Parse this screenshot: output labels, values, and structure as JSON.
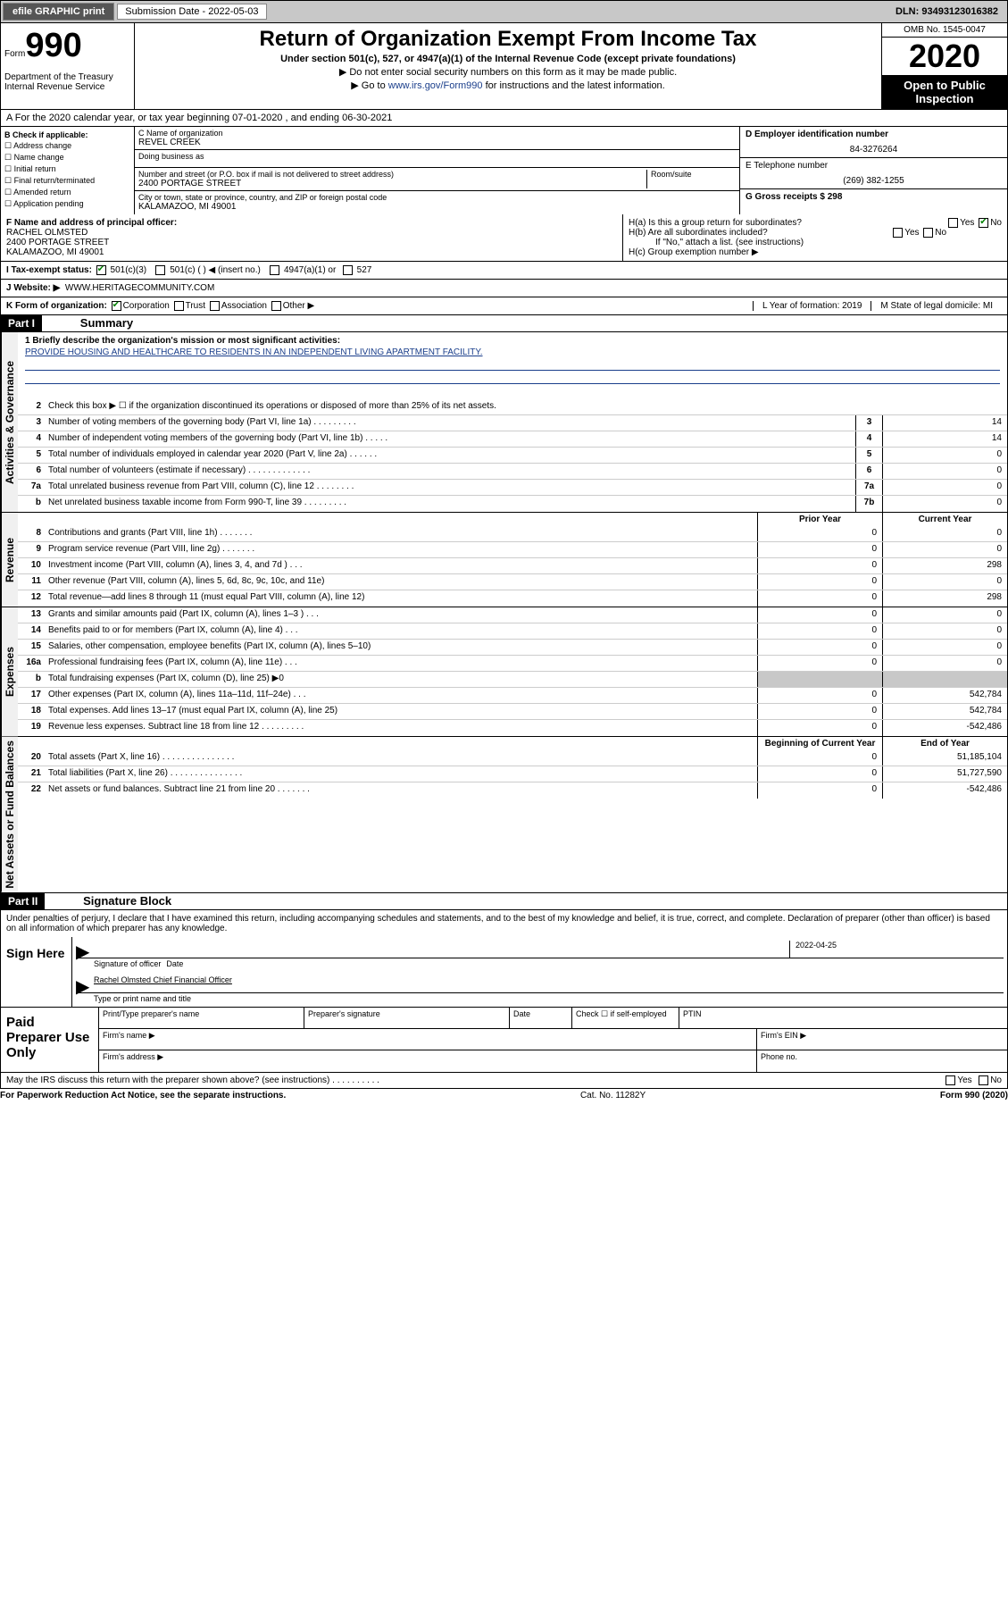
{
  "topbar": {
    "efile": "efile GRAPHIC print",
    "submission_label": "Submission Date - 2022-05-03",
    "dln": "DLN: 93493123016382"
  },
  "header": {
    "form_label": "Form",
    "form_number": "990",
    "dept": "Department of the Treasury\nInternal Revenue Service",
    "title": "Return of Organization Exempt From Income Tax",
    "subtitle1": "Under section 501(c), 527, or 4947(a)(1) of the Internal Revenue Code (except private foundations)",
    "subtitle2": "▶ Do not enter social security numbers on this form as it may be made public.",
    "subtitle3_pre": "▶ Go to ",
    "subtitle3_link": "www.irs.gov/Form990",
    "subtitle3_post": " for instructions and the latest information.",
    "omb": "OMB No. 1545-0047",
    "year": "2020",
    "otp": "Open to Public Inspection"
  },
  "period": "A For the 2020 calendar year, or tax year beginning 07-01-2020    , and ending 06-30-2021",
  "box_b": {
    "label": "B Check if applicable:",
    "items": [
      "Address change",
      "Name change",
      "Initial return",
      "Final return/terminated",
      "Amended return",
      "Application pending"
    ]
  },
  "box_c": {
    "name_label": "C Name of organization",
    "name": "REVEL CREEK",
    "dba_label": "Doing business as",
    "dba": "",
    "addr_label": "Number and street (or P.O. box if mail is not delivered to street address)",
    "room_label": "Room/suite",
    "addr": "2400 PORTAGE STREET",
    "city_label": "City or town, state or province, country, and ZIP or foreign postal code",
    "city": "KALAMAZOO, MI  49001"
  },
  "box_d": {
    "ein_label": "D Employer identification number",
    "ein": "84-3276264",
    "phone_label": "E Telephone number",
    "phone": "(269) 382-1255",
    "gross_label": "G Gross receipts $ 298"
  },
  "box_f": {
    "label": "F  Name and address of principal officer:",
    "name": "RACHEL OLMSTED",
    "addr1": "2400 PORTAGE STREET",
    "addr2": "KALAMAZOO, MI  49001"
  },
  "box_h": {
    "a_label": "H(a)  Is this a group return for subordinates?",
    "a_yes": "Yes",
    "a_no": "No",
    "b_label": "H(b)  Are all subordinates included?",
    "b_yes": "Yes",
    "b_no": "No",
    "b_note": "If \"No,\" attach a list. (see instructions)",
    "c_label": "H(c)  Group exemption number ▶"
  },
  "tax_status": {
    "label": "I    Tax-exempt status:",
    "o1": "501(c)(3)",
    "o2": "501(c) (   ) ◀ (insert no.)",
    "o3": "4947(a)(1) or",
    "o4": "527"
  },
  "website": {
    "label": "J    Website: ▶",
    "val": "WWW.HERITAGECOMMUNITY.COM"
  },
  "form_org": {
    "label": "K Form of organization:",
    "o1": "Corporation",
    "o2": "Trust",
    "o3": "Association",
    "o4": "Other ▶",
    "l_label": "L Year of formation: 2019",
    "m_label": "M State of legal domicile: MI"
  },
  "part1": {
    "hdr": "Part I",
    "title": "Summary"
  },
  "gov": {
    "vert": "Activities & Governance",
    "l1_label": "1  Briefly describe the organization's mission or most significant activities:",
    "l1_text": "PROVIDE HOUSING AND HEALTHCARE TO RESIDENTS IN AN INDEPENDENT LIVING APARTMENT FACILITY.",
    "l2": "Check this box ▶ ☐  if the organization discontinued its operations or disposed of more than 25% of its net assets.",
    "rows": [
      {
        "n": "3",
        "t": "Number of voting members of the governing body (Part VI, line 1a)   .    .    .    .    .    .    .    .    .",
        "b": "3",
        "v": "14"
      },
      {
        "n": "4",
        "t": "Number of independent voting members of the governing body (Part VI, line 1b)   .    .    .    .    .",
        "b": "4",
        "v": "14"
      },
      {
        "n": "5",
        "t": "Total number of individuals employed in calendar year 2020 (Part V, line 2a)  .    .    .    .    .    .",
        "b": "5",
        "v": "0"
      },
      {
        "n": "6",
        "t": "Total number of volunteers (estimate if necessary)  .    .    .    .    .    .    .    .    .    .    .    .    .",
        "b": "6",
        "v": "0"
      },
      {
        "n": "7a",
        "t": "Total unrelated business revenue from Part VIII, column (C), line 12   .    .    .    .    .    .    .    .",
        "b": "7a",
        "v": "0"
      },
      {
        "n": "b",
        "t": "Net unrelated business taxable income from Form 990-T, line 39   .    .    .    .    .    .    .    .    .",
        "b": "7b",
        "v": "0"
      }
    ]
  },
  "rev": {
    "vert": "Revenue",
    "hdr_prior": "Prior Year",
    "hdr_curr": "Current Year",
    "rows": [
      {
        "n": "8",
        "t": "Contributions and grants (Part VIII, line 1h)   .    .    .    .    .    .    .",
        "p": "0",
        "c": "0"
      },
      {
        "n": "9",
        "t": "Program service revenue (Part VIII, line 2g)   .    .    .    .    .    .    .",
        "p": "0",
        "c": "0"
      },
      {
        "n": "10",
        "t": "Investment income (Part VIII, column (A), lines 3, 4, and 7d )   .    .    .",
        "p": "0",
        "c": "298"
      },
      {
        "n": "11",
        "t": "Other revenue (Part VIII, column (A), lines 5, 6d, 8c, 9c, 10c, and 11e)",
        "p": "0",
        "c": "0"
      },
      {
        "n": "12",
        "t": "Total revenue—add lines 8 through 11 (must equal Part VIII, column (A), line 12)",
        "p": "0",
        "c": "298"
      }
    ]
  },
  "exp": {
    "vert": "Expenses",
    "rows": [
      {
        "n": "13",
        "t": "Grants and similar amounts paid (Part IX, column (A), lines 1–3 )   .    .    .",
        "p": "0",
        "c": "0"
      },
      {
        "n": "14",
        "t": "Benefits paid to or for members (Part IX, column (A), line 4)   .    .    .",
        "p": "0",
        "c": "0"
      },
      {
        "n": "15",
        "t": "Salaries, other compensation, employee benefits (Part IX, column (A), lines 5–10)",
        "p": "0",
        "c": "0"
      },
      {
        "n": "16a",
        "t": "Professional fundraising fees (Part IX, column (A), line 11e)   .    .    .",
        "p": "0",
        "c": "0"
      },
      {
        "n": "b",
        "t": "Total fundraising expenses (Part IX, column (D), line 25) ▶0",
        "p": "",
        "c": "",
        "shaded": true
      },
      {
        "n": "17",
        "t": "Other expenses (Part IX, column (A), lines 11a–11d, 11f–24e)   .    .    .",
        "p": "0",
        "c": "542,784"
      },
      {
        "n": "18",
        "t": "Total expenses. Add lines 13–17 (must equal Part IX, column (A), line 25)",
        "p": "0",
        "c": "542,784"
      },
      {
        "n": "19",
        "t": "Revenue less expenses. Subtract line 18 from line 12  .    .    .    .    .    .    .    .    .",
        "p": "0",
        "c": "-542,486"
      }
    ]
  },
  "net": {
    "vert": "Net Assets or Fund Balances",
    "hdr_prior": "Beginning of Current Year",
    "hdr_curr": "End of Year",
    "rows": [
      {
        "n": "20",
        "t": "Total assets (Part X, line 16)   .    .    .    .    .    .    .    .    .    .    .    .    .    .    .",
        "p": "0",
        "c": "51,185,104"
      },
      {
        "n": "21",
        "t": "Total liabilities (Part X, line 26)   .    .    .    .    .    .    .    .    .    .    .    .    .    .    .",
        "p": "0",
        "c": "51,727,590"
      },
      {
        "n": "22",
        "t": "Net assets or fund balances. Subtract line 21 from line 20  .    .    .    .    .    .    .",
        "p": "0",
        "c": "-542,486"
      }
    ]
  },
  "part2": {
    "hdr": "Part II",
    "title": "Signature Block"
  },
  "decl": "Under penalties of perjury, I declare that I have examined this return, including accompanying schedules and statements, and to the best of my knowledge and belief, it is true, correct, and complete. Declaration of preparer (other than officer) is based on all information of which preparer has any knowledge.",
  "sign": {
    "label": "Sign Here",
    "sig_label": "Signature of officer",
    "date_label": "Date",
    "date": "2022-04-25",
    "name": "Rachel Olmsted  Chief Financial Officer",
    "name_label": "Type or print name and title"
  },
  "paid": {
    "label": "Paid Preparer Use Only",
    "r1_c1": "Print/Type preparer's name",
    "r1_c2": "Preparer's signature",
    "r1_c3": "Date",
    "r1_c4": "Check ☐ if self-employed",
    "r1_c5": "PTIN",
    "r2_c1": "Firm's name    ▶",
    "r2_c2": "Firm's EIN ▶",
    "r3_c1": "Firm's address ▶",
    "r3_c2": "Phone no."
  },
  "discuss": {
    "text": "May the IRS discuss this return with the preparer shown above? (see instructions)    .    .    .    .    .    .    .    .    .    .",
    "yes": "Yes",
    "no": "No"
  },
  "bottom": {
    "left": "For Paperwork Reduction Act Notice, see the separate instructions.",
    "mid": "Cat. No. 11282Y",
    "right": "Form 990 (2020)"
  }
}
